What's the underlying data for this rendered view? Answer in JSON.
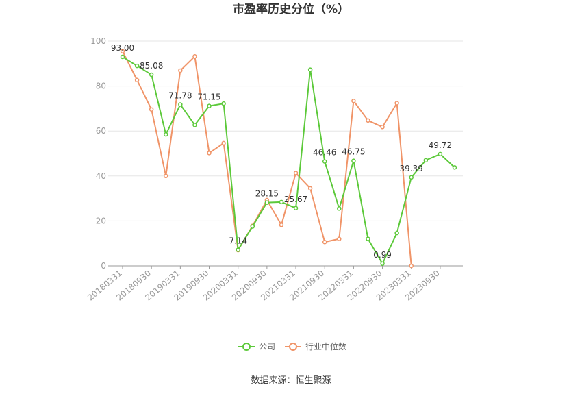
{
  "chart_data": {
    "type": "line",
    "title": "市盈率历史分位（%）",
    "xlabel": "",
    "ylabel": "",
    "ylim": [
      0,
      100
    ],
    "yticks": [
      0,
      20,
      40,
      60,
      80,
      100
    ],
    "grid": true,
    "legend_placement": "bottom",
    "x": [
      "20180331",
      "20180630",
      "20180930",
      "20181231",
      "20190331",
      "20190630",
      "20190930",
      "20191231",
      "20200331",
      "20200630",
      "20200930",
      "20201231",
      "20210331",
      "20210630",
      "20210930",
      "20211231",
      "20220331",
      "20220630",
      "20220930",
      "20221231",
      "20230331",
      "20230630",
      "20230930",
      "20231231"
    ],
    "x_tick_labels": [
      "20180331",
      "20180930",
      "20190331",
      "20190930",
      "20200331",
      "20200930",
      "20210331",
      "20210930",
      "20220331",
      "20220930",
      "20230331",
      "20230930"
    ],
    "series": [
      {
        "name": "公司",
        "color": "#5cc93a",
        "values": [
          93.0,
          89.0,
          85.08,
          58.5,
          71.78,
          62.7,
          71.15,
          72.2,
          7.14,
          17.5,
          28.15,
          28.4,
          25.67,
          87.3,
          46.46,
          25.5,
          46.75,
          12.0,
          0.99,
          14.6,
          39.39,
          47.0,
          49.72,
          43.8
        ],
        "labels": {
          "0": "93.00",
          "2": "85.08",
          "4": "71.78",
          "6": "71.15",
          "8": "7.14",
          "10": "28.15",
          "12": "25.67",
          "14": "46.46",
          "16": "46.75",
          "18": "0.99",
          "20": "39.39",
          "22": "49.72"
        }
      },
      {
        "name": "行业中位数",
        "color": "#f09468",
        "values": [
          95.5,
          82.7,
          69.6,
          40.0,
          86.9,
          93.2,
          50.2,
          54.6,
          7.0,
          17.8,
          29.3,
          18.2,
          41.3,
          34.5,
          10.6,
          12.0,
          73.4,
          64.7,
          61.8,
          72.4,
          0.0,
          null,
          null,
          null
        ]
      }
    ]
  },
  "source": "数据来源：恒生聚源"
}
